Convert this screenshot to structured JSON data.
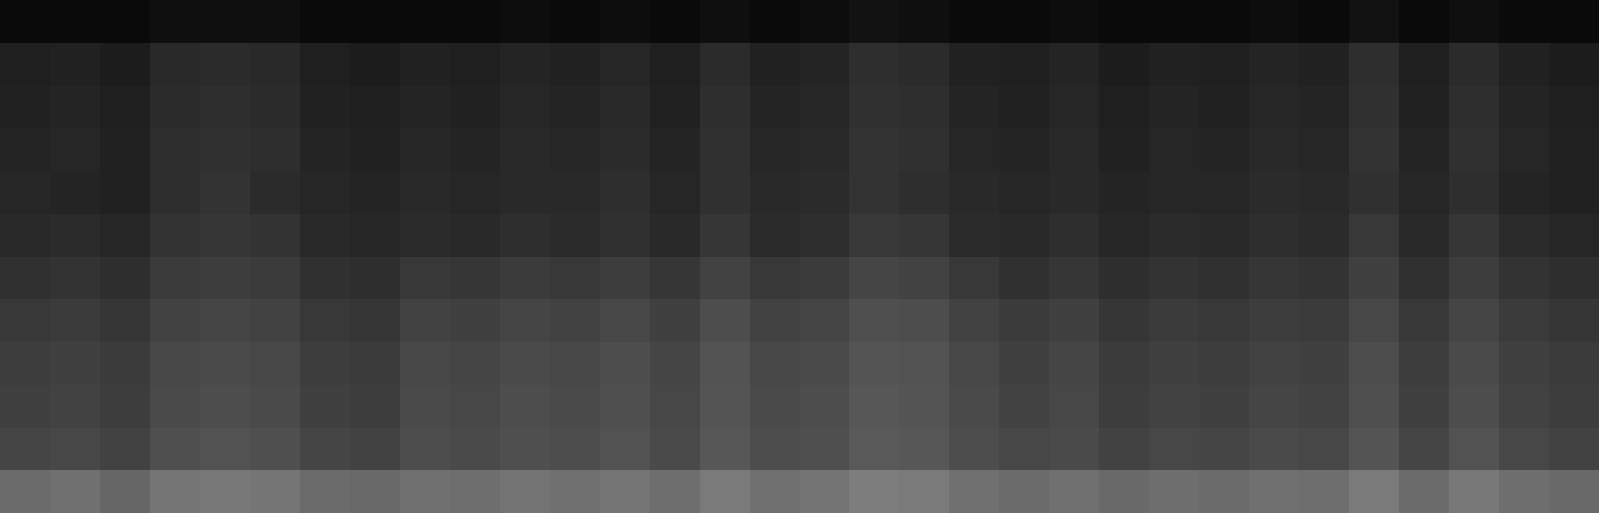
{
  "chart_data": {
    "type": "heatmap",
    "tick_labels": false,
    "zlim": [
      0,
      100
    ],
    "cells": [
      [
        4,
        4,
        4,
        6,
        6,
        6,
        4,
        4,
        4,
        4,
        5,
        4,
        5,
        4,
        6,
        4,
        5,
        7,
        6,
        4,
        4,
        5,
        4,
        4,
        4,
        5,
        4,
        7,
        4,
        6,
        4,
        4
      ],
      [
        12,
        13,
        11,
        16,
        17,
        16,
        12,
        11,
        13,
        12,
        14,
        13,
        15,
        12,
        17,
        13,
        14,
        18,
        17,
        13,
        12,
        14,
        11,
        13,
        12,
        14,
        13,
        18,
        12,
        17,
        13,
        11
      ],
      [
        13,
        14,
        12,
        17,
        18,
        17,
        13,
        12,
        14,
        13,
        15,
        14,
        16,
        13,
        18,
        14,
        15,
        19,
        18,
        14,
        13,
        15,
        12,
        14,
        13,
        15,
        14,
        19,
        13,
        18,
        14,
        12
      ],
      [
        14,
        15,
        13,
        18,
        19,
        18,
        14,
        13,
        15,
        14,
        16,
        15,
        17,
        14,
        19,
        15,
        16,
        20,
        19,
        15,
        14,
        16,
        13,
        15,
        14,
        16,
        15,
        20,
        14,
        19,
        15,
        13
      ],
      [
        15,
        14,
        13,
        18,
        20,
        17,
        15,
        14,
        16,
        15,
        16,
        16,
        18,
        15,
        19,
        16,
        17,
        20,
        18,
        16,
        15,
        16,
        14,
        15,
        15,
        17,
        16,
        19,
        15,
        18,
        14,
        13
      ],
      [
        16,
        17,
        15,
        20,
        21,
        20,
        16,
        15,
        17,
        16,
        18,
        17,
        19,
        16,
        21,
        17,
        18,
        22,
        21,
        17,
        16,
        18,
        15,
        17,
        16,
        18,
        17,
        22,
        16,
        21,
        17,
        15
      ],
      [
        19,
        20,
        18,
        23,
        24,
        23,
        19,
        18,
        22,
        21,
        23,
        22,
        24,
        21,
        26,
        22,
        23,
        27,
        26,
        22,
        19,
        21,
        18,
        20,
        19,
        21,
        20,
        25,
        19,
        24,
        20,
        18
      ],
      [
        22,
        23,
        21,
        26,
        27,
        26,
        22,
        21,
        26,
        25,
        27,
        26,
        28,
        25,
        30,
        26,
        27,
        31,
        30,
        26,
        23,
        25,
        21,
        23,
        22,
        24,
        23,
        28,
        22,
        27,
        23,
        21
      ],
      [
        24,
        25,
        23,
        28,
        29,
        28,
        24,
        23,
        28,
        27,
        29,
        28,
        30,
        27,
        32,
        28,
        29,
        33,
        32,
        28,
        25,
        27,
        23,
        25,
        24,
        26,
        25,
        30,
        24,
        29,
        25,
        23
      ],
      [
        25,
        26,
        24,
        29,
        30,
        29,
        25,
        24,
        29,
        28,
        30,
        29,
        31,
        28,
        33,
        29,
        30,
        34,
        33,
        29,
        26,
        28,
        24,
        26,
        25,
        27,
        26,
        31,
        25,
        30,
        26,
        24
      ],
      [
        27,
        28,
        26,
        31,
        32,
        31,
        27,
        26,
        30,
        29,
        31,
        30,
        32,
        29,
        34,
        30,
        31,
        35,
        34,
        30,
        28,
        29,
        26,
        28,
        27,
        29,
        28,
        33,
        27,
        32,
        28,
        26
      ],
      [
        42,
        44,
        40,
        46,
        47,
        46,
        42,
        41,
        44,
        43,
        45,
        44,
        46,
        43,
        48,
        44,
        45,
        49,
        48,
        44,
        42,
        44,
        41,
        43,
        42,
        44,
        43,
        48,
        42,
        47,
        43,
        41
      ]
    ]
  }
}
